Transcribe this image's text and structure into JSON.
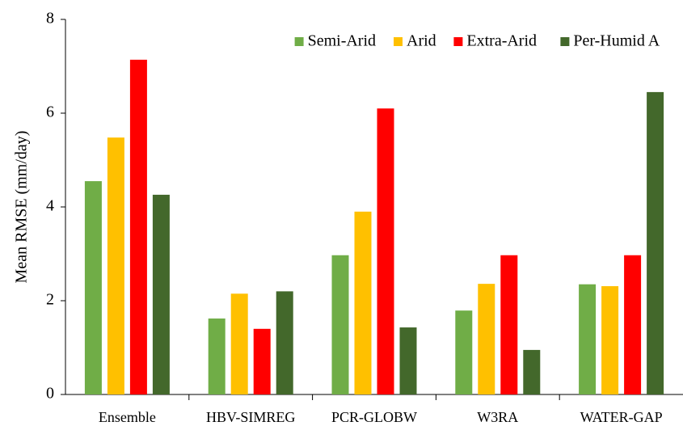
{
  "chart_data": {
    "type": "bar",
    "y_label": "Mean RMSE (mm/day)",
    "categories": [
      "Ensemble",
      "HBV-SIMREG",
      "PCR-GLOBW",
      "W3RA",
      "WATER-GAP"
    ],
    "series": [
      {
        "name": "Semi-Arid",
        "color": "#70ad47",
        "values": [
          4.55,
          1.62,
          2.97,
          1.79,
          2.35
        ]
      },
      {
        "name": "Arid",
        "color": "#ffc000",
        "values": [
          5.48,
          2.15,
          3.9,
          2.36,
          2.31
        ]
      },
      {
        "name": "Extra-Arid",
        "color": "#ff0000",
        "values": [
          7.14,
          1.4,
          6.1,
          2.97,
          2.97
        ]
      },
      {
        "name": "Per-Humid A",
        "color": "#43682b",
        "values": [
          4.26,
          2.2,
          1.43,
          0.95,
          6.45
        ]
      }
    ],
    "ylim": [
      0,
      8
    ],
    "yticks": [
      0,
      2,
      4,
      6,
      8
    ],
    "grid": false,
    "legend": "top-right"
  }
}
